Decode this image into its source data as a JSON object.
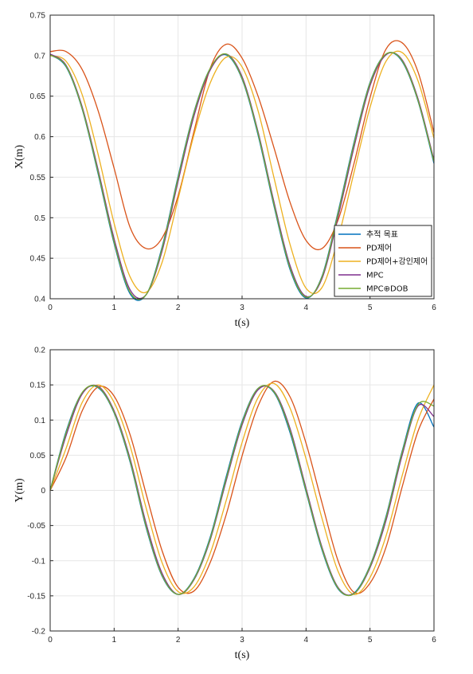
{
  "chart_data": [
    {
      "type": "line",
      "xlabel": "t(s)",
      "ylabel": "X(m)",
      "xlim": [
        0,
        6
      ],
      "ylim": [
        0.4,
        0.75
      ],
      "xticks": [
        "0",
        "1",
        "2",
        "3",
        "4",
        "5",
        "6"
      ],
      "yticks": [
        "0.4",
        "0.45",
        "0.5",
        "0.55",
        "0.6",
        "0.65",
        "0.7",
        "0.75"
      ],
      "grid": true,
      "legend": "bottom-right",
      "x": [
        0,
        0.25,
        0.5,
        0.75,
        1.0,
        1.25,
        1.5,
        1.75,
        2.0,
        2.25,
        2.5,
        2.75,
        3.0,
        3.25,
        3.5,
        3.75,
        4.0,
        4.25,
        4.5,
        4.75,
        5.0,
        5.25,
        5.5,
        5.75,
        6.0
      ],
      "series": [
        {
          "name": "추적 목표",
          "color": "#0072BD",
          "values": [
            0.701,
            0.686,
            0.634,
            0.554,
            0.468,
            0.406,
            0.405,
            0.464,
            0.551,
            0.631,
            0.684,
            0.701,
            0.671,
            0.602,
            0.514,
            0.436,
            0.401,
            0.428,
            0.507,
            0.593,
            0.667,
            0.702,
            0.693,
            0.644,
            0.567
          ]
        },
        {
          "name": "PD제어",
          "color": "#D95319",
          "values": [
            0.705,
            0.705,
            0.683,
            0.632,
            0.561,
            0.488,
            0.462,
            0.475,
            0.527,
            0.607,
            0.684,
            0.714,
            0.697,
            0.65,
            0.586,
            0.519,
            0.472,
            0.462,
            0.497,
            0.567,
            0.648,
            0.708,
            0.716,
            0.68,
            0.605
          ]
        },
        {
          "name": "PD제어+강인제어",
          "color": "#EDB120",
          "values": [
            0.7,
            0.693,
            0.652,
            0.578,
            0.493,
            0.427,
            0.408,
            0.445,
            0.523,
            0.603,
            0.666,
            0.698,
            0.686,
            0.632,
            0.549,
            0.467,
            0.413,
            0.414,
            0.474,
            0.556,
            0.636,
            0.693,
            0.704,
            0.669,
            0.598
          ]
        },
        {
          "name": "MPC",
          "color": "#7E2F8E",
          "values": [
            0.702,
            0.688,
            0.637,
            0.559,
            0.474,
            0.411,
            0.405,
            0.459,
            0.545,
            0.626,
            0.682,
            0.702,
            0.674,
            0.606,
            0.519,
            0.441,
            0.403,
            0.425,
            0.501,
            0.587,
            0.663,
            0.701,
            0.695,
            0.647,
            0.571
          ]
        },
        {
          "name": "MPC⊕DOB",
          "color": "#77AC30",
          "values": [
            0.701,
            0.687,
            0.635,
            0.556,
            0.47,
            0.408,
            0.405,
            0.462,
            0.549,
            0.63,
            0.684,
            0.702,
            0.672,
            0.604,
            0.516,
            0.438,
            0.402,
            0.427,
            0.505,
            0.591,
            0.666,
            0.702,
            0.694,
            0.645,
            0.569
          ]
        }
      ]
    },
    {
      "type": "line",
      "xlabel": "t(s)",
      "ylabel": "Y(m)",
      "xlim": [
        0,
        6
      ],
      "ylim": [
        -0.2,
        0.2
      ],
      "xticks": [
        "0",
        "1",
        "2",
        "3",
        "4",
        "5",
        "6"
      ],
      "yticks": [
        "-0.2",
        "-0.15",
        "-0.1",
        "-0.05",
        "0",
        "0.05",
        "0.1",
        "0.15",
        "0.2"
      ],
      "grid": true,
      "x": [
        0,
        0.25,
        0.5,
        0.75,
        1.0,
        1.25,
        1.5,
        1.75,
        2.0,
        2.25,
        2.5,
        2.75,
        3.0,
        3.25,
        3.5,
        3.75,
        4.0,
        4.25,
        4.5,
        4.75,
        5.0,
        5.25,
        5.5,
        5.75,
        6.0
      ],
      "series": [
        {
          "name": "추적 목표",
          "color": "#0072BD",
          "values": [
            0.0,
            0.084,
            0.139,
            0.146,
            0.11,
            0.04,
            -0.053,
            -0.122,
            -0.148,
            -0.125,
            -0.067,
            0.019,
            0.098,
            0.145,
            0.139,
            0.082,
            -0.002,
            -0.085,
            -0.14,
            -0.146,
            -0.107,
            -0.037,
            0.055,
            0.124,
            0.09
          ]
        },
        {
          "name": "PD제어",
          "color": "#D95319",
          "values": [
            0.0,
            0.047,
            0.113,
            0.147,
            0.134,
            0.079,
            -0.005,
            -0.086,
            -0.138,
            -0.143,
            -0.103,
            -0.035,
            0.049,
            0.12,
            0.155,
            0.133,
            0.067,
            -0.018,
            -0.1,
            -0.145,
            -0.132,
            -0.081,
            0.004,
            0.084,
            0.13
          ]
        },
        {
          "name": "PD제어+강인제어",
          "color": "#EDB120",
          "values": [
            0.0,
            0.06,
            0.125,
            0.15,
            0.125,
            0.063,
            -0.025,
            -0.103,
            -0.144,
            -0.137,
            -0.09,
            -0.015,
            0.068,
            0.132,
            0.152,
            0.117,
            0.045,
            -0.04,
            -0.115,
            -0.148,
            -0.124,
            -0.065,
            0.02,
            0.1,
            0.15
          ]
        },
        {
          "name": "MPC",
          "color": "#7E2F8E",
          "values": [
            0.0,
            0.078,
            0.137,
            0.148,
            0.113,
            0.045,
            -0.047,
            -0.118,
            -0.148,
            -0.127,
            -0.071,
            0.013,
            0.093,
            0.143,
            0.141,
            0.088,
            0.003,
            -0.081,
            -0.138,
            -0.147,
            -0.11,
            -0.043,
            0.049,
            0.12,
            0.105
          ]
        },
        {
          "name": "MPC⊕DOB",
          "color": "#77AC30",
          "values": [
            0.0,
            0.082,
            0.139,
            0.147,
            0.111,
            0.042,
            -0.051,
            -0.121,
            -0.148,
            -0.126,
            -0.069,
            0.016,
            0.096,
            0.145,
            0.14,
            0.085,
            0.0,
            -0.083,
            -0.139,
            -0.147,
            -0.108,
            -0.039,
            0.053,
            0.122,
            0.12
          ]
        }
      ]
    }
  ]
}
